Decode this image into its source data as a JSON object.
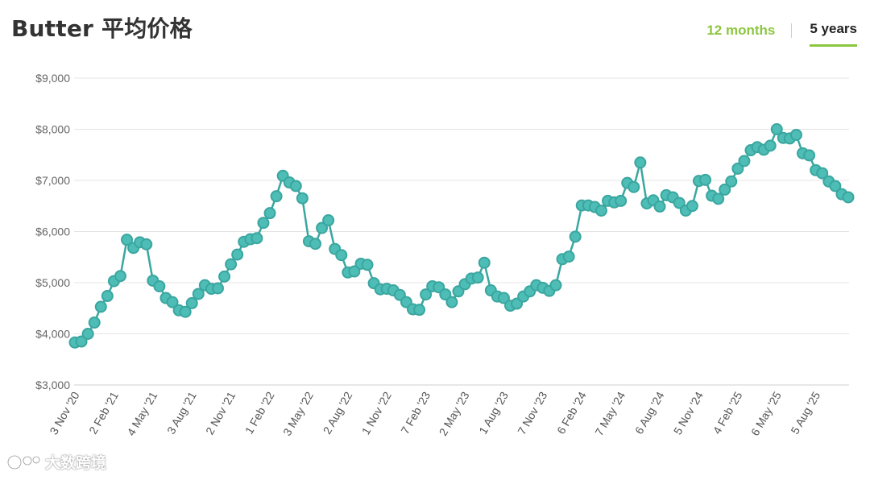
{
  "header": {
    "title": "Butter 平均价格",
    "tab_12_months": "12 months",
    "tab_5_years": "5 years",
    "active_tab": "5 years"
  },
  "watermark": {
    "text": "大数跨境"
  },
  "colors": {
    "series": "#3aa6a0",
    "marker_fill": "#4dbdb6",
    "accent": "#8cc63f",
    "grid": "#e4e4e4"
  },
  "chart_data": {
    "type": "line",
    "title": "Butter 平均价格",
    "xlabel": "",
    "ylabel": "",
    "ylim": [
      3000,
      9000
    ],
    "yticks": [
      {
        "value": 3000,
        "label": "$3,000"
      },
      {
        "value": 4000,
        "label": "$4,000"
      },
      {
        "value": 5000,
        "label": "$5,000"
      },
      {
        "value": 6000,
        "label": "$6,000"
      },
      {
        "value": 7000,
        "label": "$7,000"
      },
      {
        "value": 8000,
        "label": "$8,000"
      },
      {
        "value": 9000,
        "label": "$9,000"
      }
    ],
    "xticks": [
      {
        "index": 0,
        "label": "3 Nov '20"
      },
      {
        "index": 6,
        "label": "2 Feb '21"
      },
      {
        "index": 12,
        "label": "4 May '21"
      },
      {
        "index": 18,
        "label": "3 Aug '21"
      },
      {
        "index": 24,
        "label": "2 Nov '21"
      },
      {
        "index": 30,
        "label": "1 Feb '22"
      },
      {
        "index": 36,
        "label": "3 May '22"
      },
      {
        "index": 42,
        "label": "2 Aug '22"
      },
      {
        "index": 48,
        "label": "1 Nov '22"
      },
      {
        "index": 54,
        "label": "7 Feb '23"
      },
      {
        "index": 60,
        "label": "2 May '23"
      },
      {
        "index": 66,
        "label": "1 Aug '23"
      },
      {
        "index": 72,
        "label": "7 Nov '23"
      },
      {
        "index": 78,
        "label": "6 Feb '24"
      },
      {
        "index": 84,
        "label": "7 May '24"
      },
      {
        "index": 90,
        "label": "6 Aug '24"
      },
      {
        "index": 96,
        "label": "5 Nov '24"
      },
      {
        "index": 102,
        "label": "4 Feb '25"
      },
      {
        "index": 108,
        "label": "6 May '25"
      },
      {
        "index": 114,
        "label": "5 Aug '25"
      }
    ],
    "grid": true,
    "legend": "none",
    "series": [
      {
        "values": [
          3830,
          3850,
          4000,
          4220,
          4530,
          4740,
          5030,
          5130,
          5840,
          5680,
          5790,
          5750,
          5040,
          4930,
          4700,
          4620,
          4460,
          4430,
          4600,
          4780,
          4950,
          4880,
          4890,
          5120,
          5360,
          5550,
          5800,
          5850,
          5870,
          6170,
          6360,
          6690,
          7090,
          6960,
          6890,
          6650,
          5810,
          5760,
          6070,
          6220,
          5660,
          5540,
          5200,
          5220,
          5370,
          5350,
          4990,
          4870,
          4880,
          4850,
          4760,
          4620,
          4480,
          4470,
          4770,
          4930,
          4910,
          4770,
          4620,
          4830,
          4970,
          5080,
          5100,
          5390,
          4850,
          4730,
          4700,
          4550,
          4590,
          4730,
          4830,
          4950,
          4900,
          4840,
          4950,
          5460,
          5510,
          5900,
          6510,
          6510,
          6480,
          6410,
          6600,
          6570,
          6600,
          6950,
          6870,
          7350,
          6550,
          6610,
          6490,
          6710,
          6670,
          6560,
          6410,
          6500,
          6990,
          7010,
          6700,
          6640,
          6820,
          6980,
          7230,
          7380,
          7590,
          7650,
          7600,
          7680,
          8000,
          7830,
          7820,
          7890,
          7530,
          7490,
          7200,
          7140,
          6980,
          6890,
          6730,
          6670
        ]
      }
    ]
  }
}
